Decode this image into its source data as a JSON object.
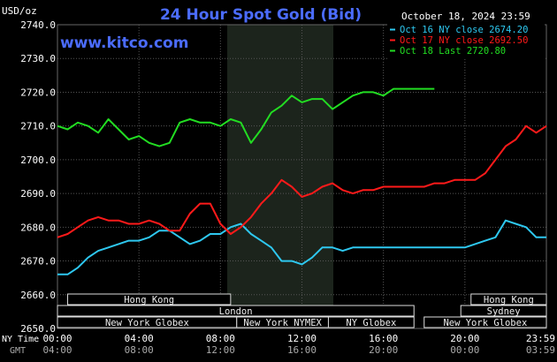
{
  "header": {
    "title": "24 Hour Spot Gold (Bid)",
    "unit": "USD/oz",
    "datetime": "October 18, 2024 23:59",
    "site": "www.kitco.com"
  },
  "axis_labels": {
    "ny_time": "NY Time",
    "gmt": "GMT"
  },
  "chart_data": {
    "type": "line",
    "ylim": [
      2650,
      2740
    ],
    "yticks": [
      "2740.0",
      "2730.0",
      "2720.0",
      "2710.0",
      "2700.0",
      "2690.0",
      "2680.0",
      "2670.0",
      "2660.0",
      "2650.0"
    ],
    "xlim_hours": [
      0,
      24
    ],
    "xticks_ny": [
      "00:00",
      "04:00",
      "08:00",
      "12:00",
      "16:00",
      "20:00",
      "23:59"
    ],
    "xticks_gmt": [
      "04:00",
      "08:00",
      "12:00",
      "16:00",
      "20:00",
      "00:00",
      "03:59"
    ],
    "legend": [
      {
        "label": "Oct 16 NY close 2674.20",
        "color": "#2ec8f0"
      },
      {
        "label": "Oct 17 NY close 2692.50",
        "color": "#ff1a1a"
      },
      {
        "label": "Oct 18 Last 2720.80",
        "color": "#22dd22"
      }
    ],
    "series": [
      {
        "color": "#2ec8f0",
        "x": [
          0,
          0.5,
          1,
          1.5,
          2,
          2.5,
          3,
          3.5,
          4,
          4.5,
          5,
          5.5,
          6,
          6.5,
          7,
          7.5,
          8,
          8.5,
          9,
          9.5,
          10,
          10.5,
          11,
          11.5,
          12,
          12.5,
          13,
          13.5,
          14,
          14.5,
          15,
          15.5,
          16,
          16.5,
          17,
          17.5,
          18,
          18.5,
          19,
          19.5,
          20,
          20.5,
          21,
          21.5,
          22,
          22.5,
          23,
          23.5,
          24
        ],
        "values": [
          2666,
          2666,
          2668,
          2671,
          2673,
          2674,
          2675,
          2676,
          2676,
          2677,
          2679,
          2679,
          2677,
          2675,
          2676,
          2678,
          2678,
          2680,
          2681,
          2678,
          2676,
          2674,
          2670,
          2670,
          2669,
          2671,
          2674,
          2674,
          2673,
          2674,
          2674,
          2674,
          2674,
          2674,
          2674,
          2674,
          2674,
          2674,
          2674,
          2674,
          2674,
          2675,
          2676,
          2677,
          2682,
          2681,
          2680,
          2677,
          2677
        ]
      },
      {
        "color": "#ff1a1a",
        "x": [
          0,
          0.5,
          1,
          1.5,
          2,
          2.5,
          3,
          3.5,
          4,
          4.5,
          5,
          5.5,
          6,
          6.5,
          7,
          7.5,
          8,
          8.5,
          9,
          9.5,
          10,
          10.5,
          11,
          11.5,
          12,
          12.5,
          13,
          13.5,
          14,
          14.5,
          15,
          15.5,
          16,
          16.5,
          17,
          17.5,
          18,
          18.5,
          19,
          19.5,
          20,
          20.5,
          21,
          21.5,
          22,
          22.5,
          23,
          23.5,
          24
        ],
        "values": [
          2677,
          2678,
          2680,
          2682,
          2683,
          2682,
          2682,
          2681,
          2681,
          2682,
          2681,
          2679,
          2679,
          2684,
          2687,
          2687,
          2681,
          2678,
          2680,
          2683,
          2687,
          2690,
          2694,
          2692,
          2689,
          2690,
          2692,
          2693,
          2691,
          2690,
          2691,
          2691,
          2692,
          2692,
          2692,
          2692,
          2692,
          2693,
          2693,
          2694,
          2694,
          2694,
          2696,
          2700,
          2704,
          2706,
          2710,
          2708,
          2710
        ]
      },
      {
        "color": "#22dd22",
        "x": [
          0,
          0.5,
          1,
          1.5,
          2,
          2.5,
          3,
          3.5,
          4,
          4.5,
          5,
          5.5,
          6,
          6.5,
          7,
          7.5,
          8,
          8.5,
          9,
          9.5,
          10,
          10.5,
          11,
          11.5,
          12,
          12.5,
          13,
          13.5,
          14,
          14.5,
          15,
          15.5,
          16,
          16.5,
          17,
          17.5,
          18,
          18.5
        ],
        "values": [
          2710,
          2709,
          2711,
          2710,
          2708,
          2712,
          2709,
          2706,
          2707,
          2705,
          2704,
          2705,
          2711,
          2712,
          2711,
          2711,
          2710,
          2712,
          2711,
          2705,
          2709,
          2714,
          2716,
          2719,
          2717,
          2718,
          2718,
          2715,
          2717,
          2719,
          2720,
          2720,
          2719,
          2721,
          2721,
          2721,
          2721,
          2721
        ]
      }
    ]
  },
  "sessions": [
    {
      "label": "Hong Kong",
      "start": 0.5,
      "end": 8.5,
      "row": 0
    },
    {
      "label": "London",
      "start": 0,
      "end": 17.5,
      "row": 1
    },
    {
      "label": "New York Globex",
      "start": 0,
      "end": 8.8,
      "row": 2
    },
    {
      "label": "New York NYMEX",
      "start": 8.8,
      "end": 13.3,
      "row": 2
    },
    {
      "label": "NY Globex",
      "start": 13.3,
      "end": 17.5,
      "row": 2
    },
    {
      "label": "Hong Kong",
      "start": 20.3,
      "end": 24,
      "row": 0
    },
    {
      "label": "Sydney",
      "start": 19.8,
      "end": 24,
      "row": 1
    },
    {
      "label": "New York Globex",
      "start": 18,
      "end": 24,
      "row": 2
    }
  ]
}
